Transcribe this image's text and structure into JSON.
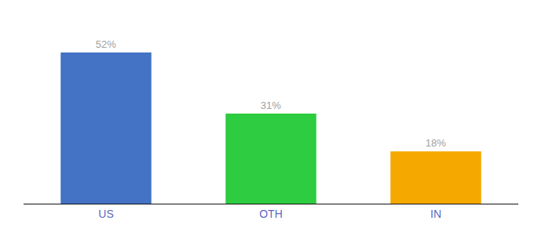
{
  "chart_data": {
    "type": "bar",
    "categories": [
      "US",
      "OTH",
      "IN"
    ],
    "values": [
      52,
      31,
      18
    ],
    "value_labels": [
      "52%",
      "31%",
      "18%"
    ],
    "colors": [
      "#4472c4",
      "#2ecc40",
      "#f5a800"
    ],
    "ylim": [
      0,
      62
    ],
    "data_labels": true,
    "grid": false,
    "tick_labels": "x"
  }
}
